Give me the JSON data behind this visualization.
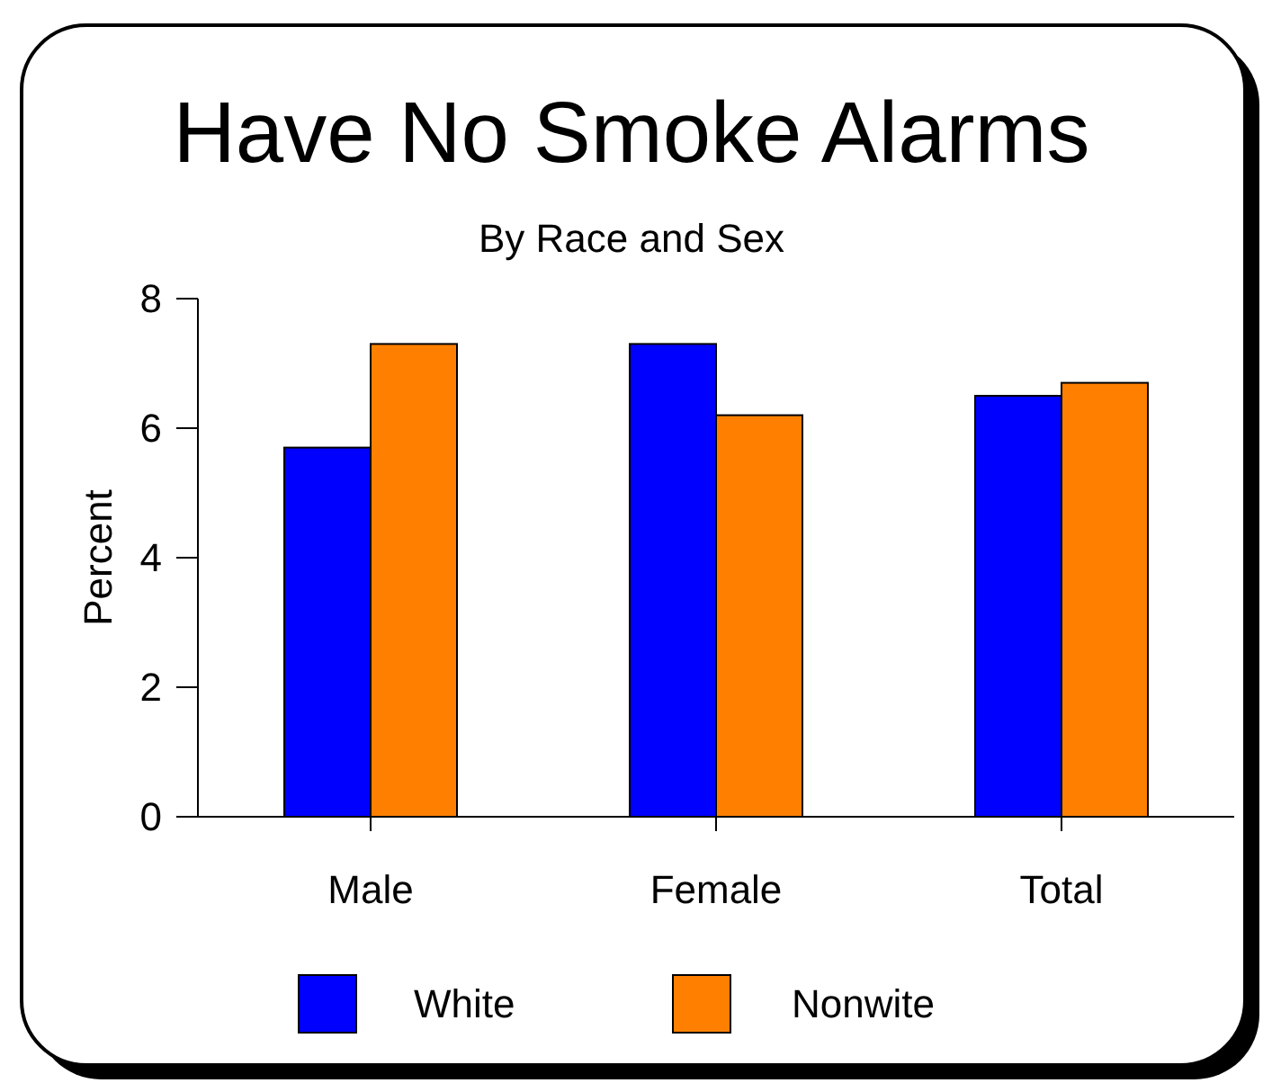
{
  "chart_data": {
    "type": "bar",
    "title": "Have No Smoke Alarms",
    "subtitle": "By Race and Sex",
    "ylabel": "Percent",
    "categories": [
      "Male",
      "Female",
      "Total"
    ],
    "series": [
      {
        "name": "White",
        "color": "#0000ff",
        "values": [
          5.7,
          7.3,
          6.5
        ]
      },
      {
        "name": "Nonwite",
        "color": "#ff8000",
        "values": [
          7.3,
          6.2,
          6.7
        ]
      }
    ],
    "ylim": [
      0,
      8
    ],
    "yticks": [
      0,
      2,
      4,
      6,
      8
    ],
    "grid": false,
    "legend": "bottom"
  }
}
